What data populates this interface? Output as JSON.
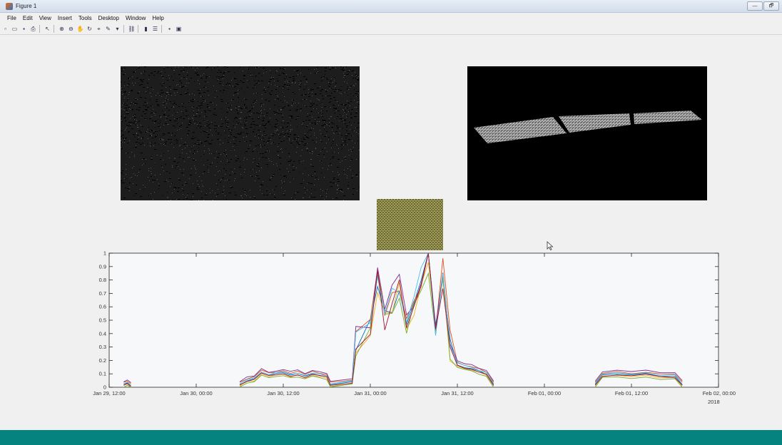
{
  "window": {
    "title": "Figure 1",
    "controls": [
      "—",
      "🗗"
    ]
  },
  "menu": [
    "File",
    "Edit",
    "View",
    "Insert",
    "Tools",
    "Desktop",
    "Window",
    "Help"
  ],
  "toolbar": {
    "icons": [
      "new-figure-icon",
      "open-file-icon",
      "save-icon",
      "print-icon",
      "|",
      "edit-plot-icon",
      "|",
      "zoom-in-icon",
      "zoom-out-icon",
      "pan-icon",
      "rotate-3d-icon",
      "data-cursor-icon",
      "brush-icon",
      "brush-menu-icon",
      "|",
      "link-plot-icon",
      "|",
      "insert-colorbar-icon",
      "insert-legend-icon",
      "|",
      "hide-plot-tools-icon",
      "show-plot-tools-icon"
    ]
  },
  "colors": {
    "accent_bar": "#04837f",
    "plot_background": "#f7f8fa",
    "series": [
      "#0072bd",
      "#d95319",
      "#edb120",
      "#7e2f8e",
      "#77ac30",
      "#4dbeee",
      "#a2142f"
    ]
  },
  "chart_data": {
    "type": "line",
    "title": "",
    "xlabel": "",
    "ylabel": "",
    "xaxis_type": "datetime",
    "xlim": [
      "2018-01-29 12:00",
      "2018-02-02 00:00"
    ],
    "ylim": [
      0,
      1
    ],
    "yticks": [
      0,
      0.1,
      0.2,
      0.3,
      0.4,
      0.5,
      0.6,
      0.7,
      0.8,
      0.9,
      1
    ],
    "ytick_labels": [
      "0",
      "0.1",
      "0.2",
      "0.3",
      "0.4",
      "0.5",
      "0.6",
      "0.7",
      "0.8",
      "0.9",
      "1"
    ],
    "xticks": [
      "2018-01-29 12:00",
      "2018-01-30 00:00",
      "2018-01-30 12:00",
      "2018-01-31 00:00",
      "2018-01-31 12:00",
      "2018-02-01 00:00",
      "2018-02-01 12:00",
      "2018-02-02 00:00"
    ],
    "xtick_labels": [
      "Jan 29, 12:00",
      "Jan 30, 00:00",
      "Jan 30, 12:00",
      "Jan 31, 00:00",
      "Jan 31, 12:00",
      "Feb 01, 00:00",
      "Feb 01, 12:00",
      "Feb 02, 00:00"
    ],
    "x_secondary_label": "2018",
    "grid": false,
    "series_base": {
      "x": [
        "2018-01-29 14:00",
        "2018-01-29 14:30",
        "2018-01-29 15:00",
        "2018-01-30 06:00",
        "2018-01-30 07:00",
        "2018-01-30 08:00",
        "2018-01-30 09:00",
        "2018-01-30 10:00",
        "2018-01-30 11:00",
        "2018-01-30 12:00",
        "2018-01-30 13:00",
        "2018-01-30 14:00",
        "2018-01-30 15:00",
        "2018-01-30 16:00",
        "2018-01-30 17:00",
        "2018-01-30 18:00",
        "2018-01-30 18:30",
        "2018-01-30 21:30",
        "2018-01-30 22:00",
        "2018-01-31 00:00",
        "2018-01-31 01:00",
        "2018-01-31 02:00",
        "2018-01-31 03:00",
        "2018-01-31 04:00",
        "2018-01-31 05:00",
        "2018-01-31 06:00",
        "2018-01-31 07:00",
        "2018-01-31 08:00",
        "2018-01-31 09:00",
        "2018-01-31 10:00",
        "2018-01-31 11:00",
        "2018-01-31 12:00",
        "2018-01-31 13:00",
        "2018-01-31 14:00",
        "2018-01-31 15:00",
        "2018-01-31 16:00",
        "2018-01-31 17:00",
        "2018-02-01 07:00",
        "2018-02-01 08:00",
        "2018-02-01 10:00",
        "2018-02-01 12:00",
        "2018-02-01 14:00",
        "2018-02-01 16:00",
        "2018-02-01 18:00",
        "2018-02-01 19:00"
      ],
      "y": [
        0.02,
        0.03,
        0.01,
        0.02,
        0.05,
        0.06,
        0.11,
        0.09,
        0.1,
        0.11,
        0.09,
        0.1,
        0.08,
        0.1,
        0.09,
        0.08,
        0.02,
        0.04,
        0.32,
        0.45,
        0.82,
        0.52,
        0.64,
        0.75,
        0.48,
        0.62,
        0.78,
        0.99,
        0.42,
        0.83,
        0.3,
        0.17,
        0.15,
        0.14,
        0.12,
        0.1,
        0.02,
        0.02,
        0.09,
        0.1,
        0.09,
        0.1,
        0.08,
        0.08,
        0.02
      ]
    },
    "series": [
      {
        "offset": 0.0,
        "color": "#0072bd"
      },
      {
        "offset": 0.015,
        "color": "#d95319"
      },
      {
        "offset": -0.01,
        "color": "#edb120"
      },
      {
        "offset": 0.025,
        "color": "#7e2f8e"
      },
      {
        "offset": -0.02,
        "color": "#77ac30"
      },
      {
        "offset": 0.008,
        "color": "#4dbeee"
      },
      {
        "offset": -0.005,
        "color": "#a2142f"
      }
    ]
  }
}
